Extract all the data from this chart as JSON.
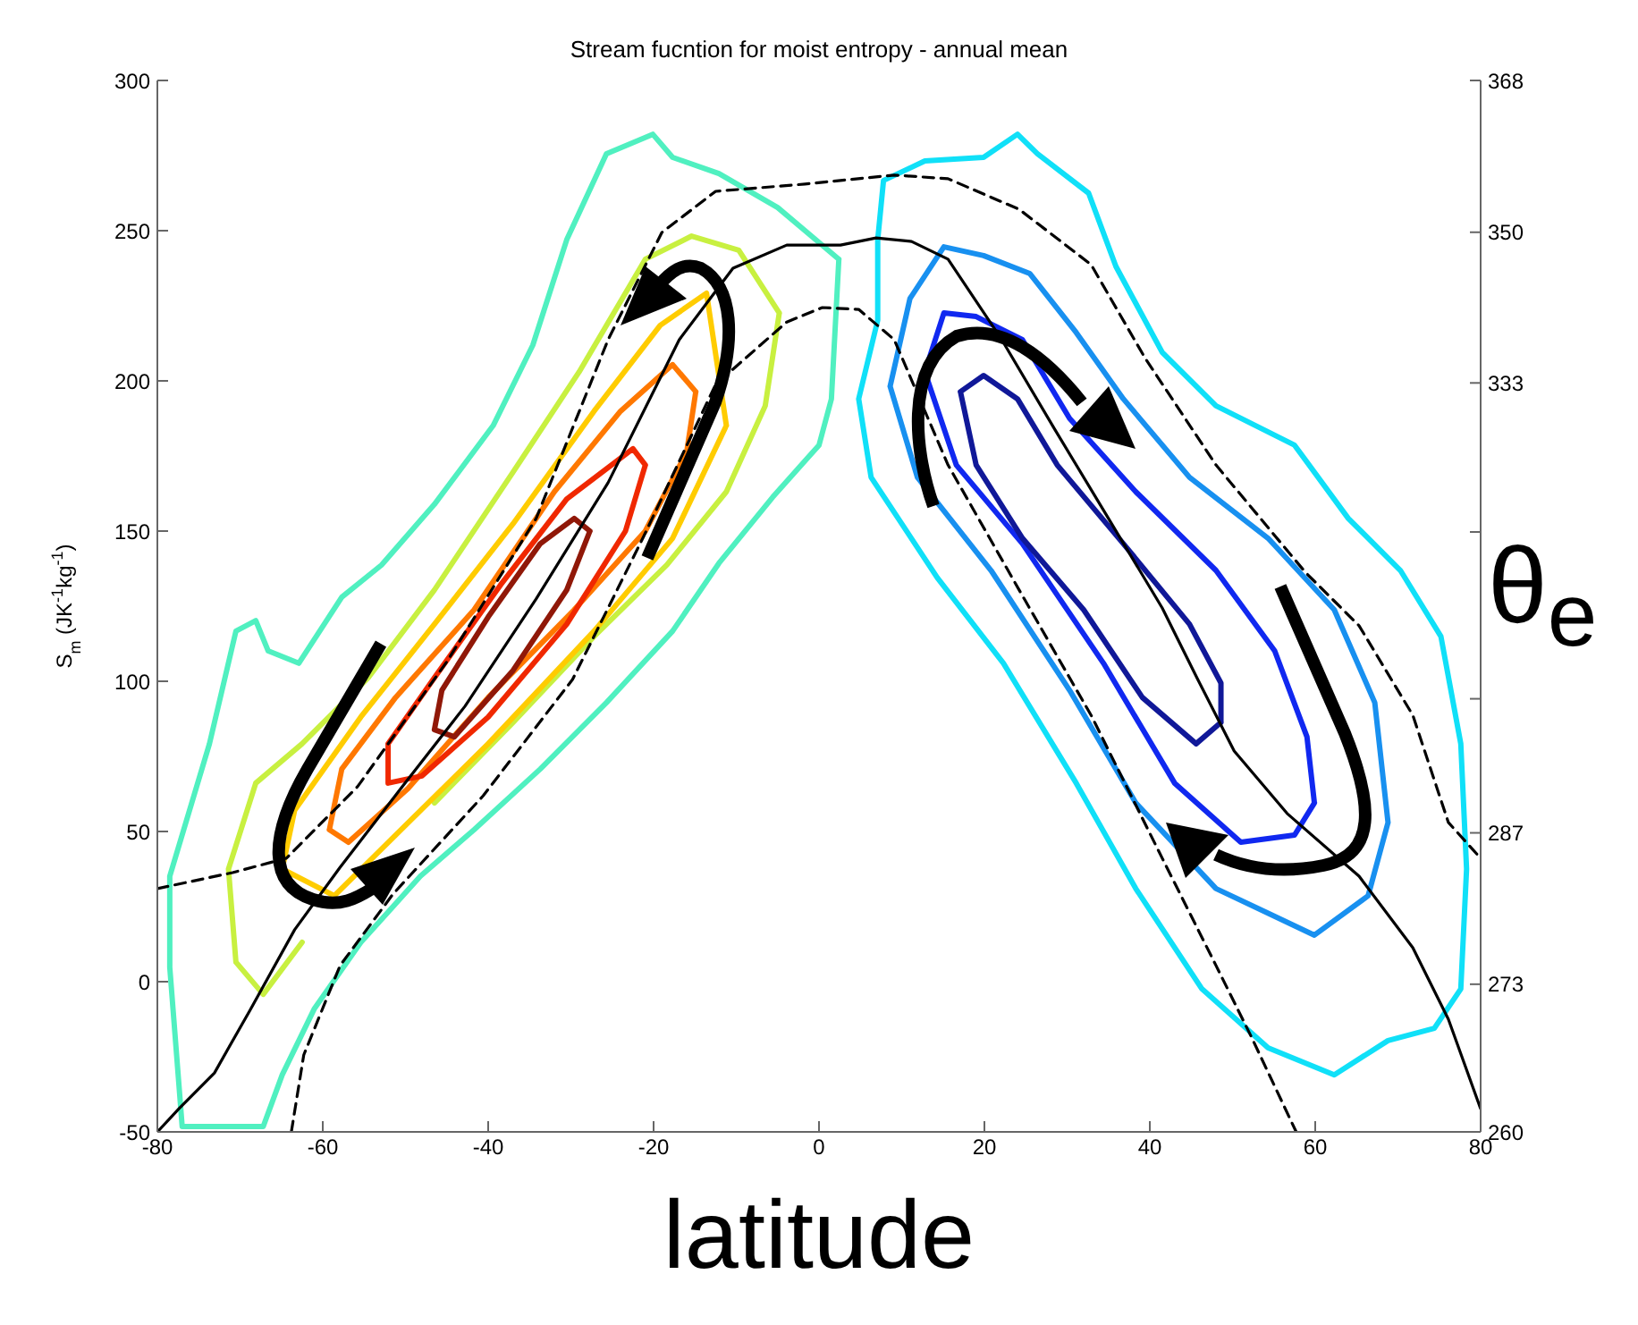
{
  "chart_data": {
    "type": "line",
    "title": "Stream fucntion for moist entropy - annual mean",
    "xlabel": "latitude",
    "ylabel": "S$_{m}$ (JK$^{-1}$kg$^{-1}$)",
    "y2label": "θ$_{e}$",
    "xlim": [
      -80,
      80
    ],
    "xticks": [
      -80,
      -60,
      -40,
      -20,
      0,
      20,
      40,
      60,
      80
    ],
    "ylim": [
      -50,
      300
    ],
    "yticks": [
      -50,
      0,
      50,
      100,
      150,
      200,
      250,
      300
    ],
    "y2lim": [
      260,
      368
    ],
    "y2ticks": [
      260,
      273,
      287,
      {
        "value": 300,
        "label": null
      },
      {
        "value": 317,
        "label": null
      },
      333,
      350,
      368
    ],
    "log": "y2",
    "grid": false,
    "legend": false,
    "marker": "none",
    "series": [
      {
        "color": "#50f0c0",
        "x": [
          -78.5,
          -73.7,
          -70.5,
          -68.1,
          -66.6,
          -62.9,
          -57.7,
          -52.9,
          -46.5,
          -39.4,
          -34.6,
          -30.5,
          -25.7,
          -20.1,
          -17.7,
          -12.1,
          -5.0,
          2.4,
          null,
          -78.5,
          -78.5,
          -77.0,
          -67.2,
          -64.9,
          -61.0,
          -55.4,
          -48.2,
          -41.7,
          -33.7,
          -25.7,
          -17.7,
          -12.1,
          -5.6,
          0.0,
          1.5,
          2.4
        ],
        "values": [
          35.1,
          79.2,
          116.7,
          120.2,
          110.1,
          106.0,
          128.0,
          138.7,
          158.9,
          185.1,
          211.9,
          247.0,
          275.6,
          282.1,
          274.4,
          269.0,
          257.7,
          240.5,
          null,
          35.1,
          4.8,
          -48.2,
          -48.2,
          -31.0,
          -8.9,
          13.1,
          35.1,
          50.6,
          70.8,
          92.9,
          116.7,
          139.3,
          161.3,
          178.6,
          194.0,
          240.5
        ]
      },
      {
        "color": "#c8f040",
        "x": [
          -71.4,
          -68.1,
          -62.5,
          -54.5,
          -46.5,
          -37.0,
          -29.0,
          -21.0,
          -15.4,
          -9.7,
          -4.8,
          null,
          -71.4,
          -70.5,
          -67.2,
          -62.5,
          -55.4,
          -46.5,
          -37.0,
          -27.2,
          -18.4,
          -11.2,
          -6.5,
          -4.8
        ],
        "values": [
          37.5,
          66.1,
          79.2,
          101.2,
          130.4,
          169.6,
          203.0,
          240.5,
          248.2,
          243.5,
          222.6,
          null,
          37.5,
          6.5,
          -4.2,
          13.1,
          null,
          59.5,
          86.3,
          114.9,
          138.7,
          163.1,
          191.7,
          222.6
        ]
      },
      {
        "color": "#ffcc00",
        "x": [
          -64.9,
          -63.4,
          -55.4,
          -46.5,
          -37.0,
          -27.2,
          -19.2,
          -13.6,
          -11.2,
          null,
          -64.9,
          -58.6,
          -51.2,
          -40.0,
          -27.2,
          -17.7,
          -11.2
        ],
        "values": [
          37.5,
          57.1,
          88.1,
          119.0,
          152.4,
          189.9,
          218.5,
          229.2,
          185.1,
          null,
          37.5,
          28.6,
          48.8,
          79.2,
          116.7,
          147.6,
          185.1
        ]
      },
      {
        "color": "#ff7800",
        "x": [
          -59.2,
          -57.7,
          -51.2,
          -41.7,
          -32.0,
          -24.0,
          -17.7,
          -14.9,
          null,
          -59.2,
          -56.9,
          -49.7,
          -40.0,
          -29.6,
          -21.0,
          -16.0,
          -14.9
        ],
        "values": [
          50.6,
          70.8,
          94.6,
          123.8,
          163.1,
          189.9,
          205.4,
          196.4,
          null,
          50.6,
          46.4,
          64.3,
          94.6,
          123.8,
          150.0,
          176.2,
          196.4
        ]
      },
      {
        "color": "#f02800",
        "x": [
          -52.1,
          -46.5,
          -38.5,
          -30.5,
          -22.5,
          -21.0,
          null,
          -52.1,
          -52.1,
          -48.0,
          -40.0,
          -30.5,
          -23.4,
          -21.0
        ],
        "values": [
          79.2,
          101.2,
          132.1,
          160.7,
          177.4,
          172.0,
          null,
          79.2,
          66.1,
          68.5,
          88.1,
          119.0,
          150.0,
          172.0
        ]
      },
      {
        "color": "#901808",
        "x": [
          -46.5,
          -45.6,
          -40.0,
          -33.7,
          -29.6,
          -27.7,
          null,
          -46.5,
          -44.1,
          -37.0,
          -30.5,
          -27.7
        ],
        "values": [
          83.9,
          97.0,
          121.4,
          145.8,
          154.2,
          150.0,
          null,
          83.9,
          81.5,
          103.6,
          130.4,
          150.0
        ]
      },
      {
        "color": "#10e0f8",
        "x": [
          4.8,
          7.1,
          7.1,
          7.8,
          12.8,
          19.9,
          24.0,
          26.4,
          32.6,
          35.9,
          41.5,
          48.0,
          57.5,
          64.0,
          70.3,
          75.2,
          77.6,
          78.3,
          null,
          4.8,
          6.3,
          14.3,
          22.3,
          31.1,
          38.3,
          46.3,
          54.3,
          62.3,
          68.8,
          74.4,
          77.6,
          78.3
        ],
        "values": [
          194.0,
          220.2,
          247.0,
          266.7,
          273.2,
          274.4,
          282.1,
          275.6,
          262.5,
          238.1,
          209.5,
          191.7,
          178.6,
          154.2,
          136.9,
          114.9,
          79.2,
          37.5,
          null,
          194.0,
          167.9,
          134.5,
          106.0,
          66.1,
          31.0,
          -2.4,
          -22.0,
          -31.0,
          -19.6,
          -15.5,
          -2.4,
          37.5
        ]
      },
      {
        "color": "#1890f0",
        "x": [
          8.6,
          11.0,
          15.1,
          19.9,
          25.5,
          31.1,
          36.8,
          44.8,
          54.3,
          62.3,
          67.2,
          68.8,
          null,
          8.6,
          11.9,
          20.8,
          30.3,
          38.3,
          48.0,
          59.9,
          66.4,
          68.8
        ],
        "values": [
          198.2,
          227.4,
          244.6,
          241.7,
          235.7,
          216.1,
          194.0,
          167.9,
          147.6,
          123.8,
          92.9,
          53.0,
          null,
          198.2,
          167.9,
          136.9,
          97.0,
          59.5,
          31.0,
          15.5,
          28.6,
          53.0
        ]
      },
      {
        "color": "#1028f0",
        "x": [
          12.8,
          15.1,
          19.0,
          24.6,
          30.3,
          38.3,
          48.0,
          55.1,
          59.0,
          59.9,
          null,
          12.8,
          16.6,
          24.6,
          34.4,
          43.0,
          51.0,
          57.5,
          59.9
        ],
        "values": [
          203.0,
          222.6,
          221.4,
          213.7,
          187.5,
          163.1,
          136.9,
          110.1,
          81.5,
          59.5,
          null,
          203.0,
          172.0,
          145.8,
          106.0,
          66.1,
          46.4,
          48.8,
          59.5
        ]
      },
      {
        "color": "#101898",
        "x": [
          17.1,
          19.9,
          24.0,
          28.8,
          36.8,
          44.8,
          48.6,
          48.6,
          null,
          17.1,
          19.0,
          24.6,
          32.0,
          39.1,
          45.6,
          48.6
        ],
        "values": [
          196.4,
          201.8,
          194.0,
          172.0,
          145.8,
          119.0,
          99.4,
          86.3,
          null,
          196.4,
          172.0,
          147.6,
          123.8,
          94.6,
          79.2,
          86.3
        ]
      },
      {
        "color": "#000000",
        "line_style": "solid",
        "x": [
          -80,
          -77.4,
          -73.1,
          -68.8,
          -63.4,
          -57.9,
          -50.4,
          -42.8,
          -34.2,
          -25.5,
          -16.9,
          -10.4,
          -3.9,
          2.6,
          6.9,
          11.2,
          15.6,
          22.1,
          28.5,
          35.0,
          41.5,
          45.8,
          50.2,
          56.6,
          65.3,
          71.8,
          76.1,
          80
        ],
        "values": [
          -50,
          -42.3,
          -30.4,
          -9.5,
          17.3,
          38.1,
          64.9,
          91.7,
          127.4,
          166.1,
          213.7,
          237.5,
          245.2,
          245.2,
          247.6,
          246.4,
          240.5,
          213.7,
          183.9,
          154.2,
          124.4,
          100.6,
          76.8,
          56.0,
          35.1,
          11.3,
          -12.5,
          -42.3
        ]
      },
      {
        "color": "#000000",
        "line_style": "dashed",
        "x": [
          -80,
          -70.9,
          -64.4,
          -55.8,
          -45.0,
          -34.2,
          -25.5,
          -19.0,
          -12.5,
          -1.7,
          9.1,
          15.6,
          24.2,
          32.9,
          39.4,
          48.0,
          58.8,
          65.3,
          71.8,
          76.1,
          80
        ],
        "values": [
          31.0,
          36.3,
          41.1,
          64.9,
          106.5,
          154.2,
          213.7,
          249.4,
          263.1,
          265.5,
          268.5,
          267.3,
          257.1,
          238.7,
          207.7,
          172.0,
          136.3,
          118.5,
          88.7,
          53.0,
          41.1
        ]
      },
      {
        "color": "#000000",
        "line_style": "dashed",
        "x": [
          -63.8,
          -62.3,
          -57.9,
          -51.5,
          -40.6,
          -29.8,
          -21.2,
          -12.5,
          -3.9,
          0.4,
          4.8,
          9.1,
          15.6,
          24.2,
          32.9,
          41.5,
          48.0,
          52.3,
          57.7
        ],
        "values": [
          -50,
          -24.4,
          5.4,
          29.2,
          61.9,
          100.6,
          148.2,
          198.8,
          219.6,
          224.4,
          223.8,
          213.7,
          172.0,
          130.4,
          88.7,
          41.1,
          5.4,
          -18.5,
          -50
        ]
      }
    ]
  }
}
